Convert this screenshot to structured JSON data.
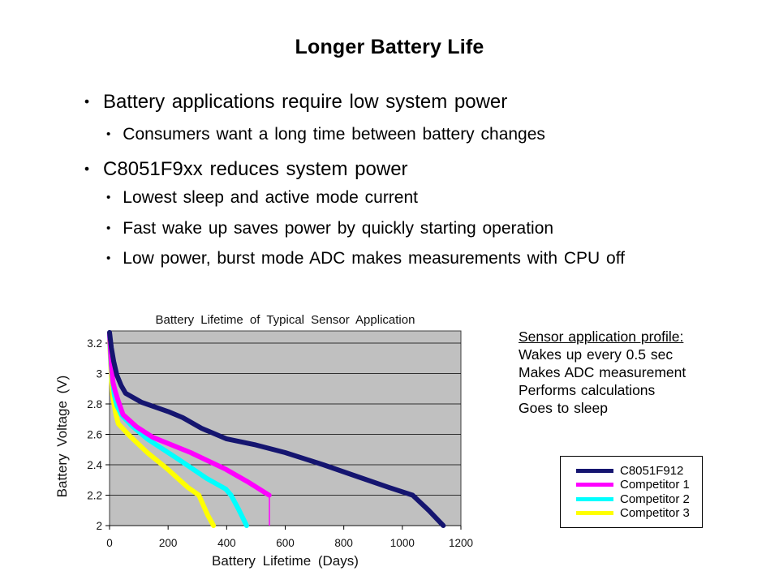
{
  "slide": {
    "title": "Longer Battery Life"
  },
  "bullets": [
    {
      "level": 1,
      "text": "Battery applications require low system power"
    },
    {
      "level": 2,
      "text": "Consumers want a long time between battery changes"
    },
    {
      "level": 1,
      "text": "C8051F9xx reduces system power"
    },
    {
      "level": 2,
      "text": "Lowest sleep and active mode current"
    },
    {
      "level": 2,
      "text": "Fast wake up saves power by quickly starting operation"
    },
    {
      "level": 2,
      "text": "Low power, burst mode ADC makes measurements with CPU off"
    }
  ],
  "profile": {
    "heading": "Sensor application profile:",
    "lines": [
      "Wakes up every 0.5 sec",
      "Makes ADC measurement",
      "Performs calculations",
      "Goes to sleep"
    ]
  },
  "chart_data": {
    "type": "line",
    "title": "Battery Lifetime of Typical Sensor Application",
    "xlabel": "Battery Lifetime (Days)",
    "ylabel": "Battery Voltage (V)",
    "xlim": [
      0,
      1200
    ],
    "ylim": [
      2.0,
      3.28
    ],
    "x_ticks": [
      0,
      200,
      400,
      600,
      800,
      1000,
      1200
    ],
    "y_ticks": [
      2,
      2.2,
      2.4,
      2.6,
      2.8,
      3,
      3.2
    ],
    "grid": "horizontal",
    "plot_bg": "#c0c0c0",
    "legend_position": "right-bottom",
    "series": [
      {
        "name": "C8051F912",
        "color": "#151570",
        "points": [
          [
            0,
            3.27
          ],
          [
            6,
            3.17
          ],
          [
            14,
            3.08
          ],
          [
            25,
            2.99
          ],
          [
            40,
            2.92
          ],
          [
            55,
            2.87
          ],
          [
            110,
            2.81
          ],
          [
            200,
            2.75
          ],
          [
            250,
            2.71
          ],
          [
            314,
            2.64
          ],
          [
            400,
            2.57
          ],
          [
            500,
            2.53
          ],
          [
            600,
            2.48
          ],
          [
            730,
            2.4
          ],
          [
            850,
            2.32
          ],
          [
            955,
            2.25
          ],
          [
            1035,
            2.2
          ],
          [
            1090,
            2.1
          ],
          [
            1140,
            2.0
          ]
        ]
      },
      {
        "name": "Competitor 1",
        "color": "#ff00ff",
        "points": [
          [
            0,
            3.26
          ],
          [
            6,
            3.06
          ],
          [
            12,
            2.94
          ],
          [
            20,
            2.88
          ],
          [
            28,
            2.83
          ],
          [
            46,
            2.73
          ],
          [
            92,
            2.65
          ],
          [
            148,
            2.58
          ],
          [
            277,
            2.48
          ],
          [
            397,
            2.37
          ],
          [
            470,
            2.29
          ],
          [
            545,
            2.2
          ]
        ]
      },
      {
        "name": "Competitor 2",
        "color": "#00ffff",
        "points": [
          [
            0,
            3.25
          ],
          [
            5,
            3.06
          ],
          [
            10,
            2.96
          ],
          [
            16,
            2.86
          ],
          [
            25,
            2.79
          ],
          [
            40,
            2.73
          ],
          [
            74,
            2.66
          ],
          [
            129,
            2.57
          ],
          [
            240,
            2.43
          ],
          [
            332,
            2.31
          ],
          [
            397,
            2.24
          ],
          [
            415,
            2.2
          ],
          [
            440,
            2.11
          ],
          [
            468,
            2.0
          ]
        ]
      },
      {
        "name": "Competitor 3",
        "color": "#ffff00",
        "points": [
          [
            0,
            3.22
          ],
          [
            5,
            3.02
          ],
          [
            10,
            2.86
          ],
          [
            15,
            2.8
          ],
          [
            22,
            2.73
          ],
          [
            30,
            2.67
          ],
          [
            69,
            2.59
          ],
          [
            129,
            2.48
          ],
          [
            199,
            2.37
          ],
          [
            268,
            2.25
          ],
          [
            305,
            2.2
          ],
          [
            335,
            2.07
          ],
          [
            355,
            2.0
          ]
        ]
      }
    ],
    "drop_line": {
      "series": "Competitor 1",
      "day": 546,
      "v_from": 2.2,
      "v_to": 2.0,
      "color": "#ff00ff"
    }
  }
}
